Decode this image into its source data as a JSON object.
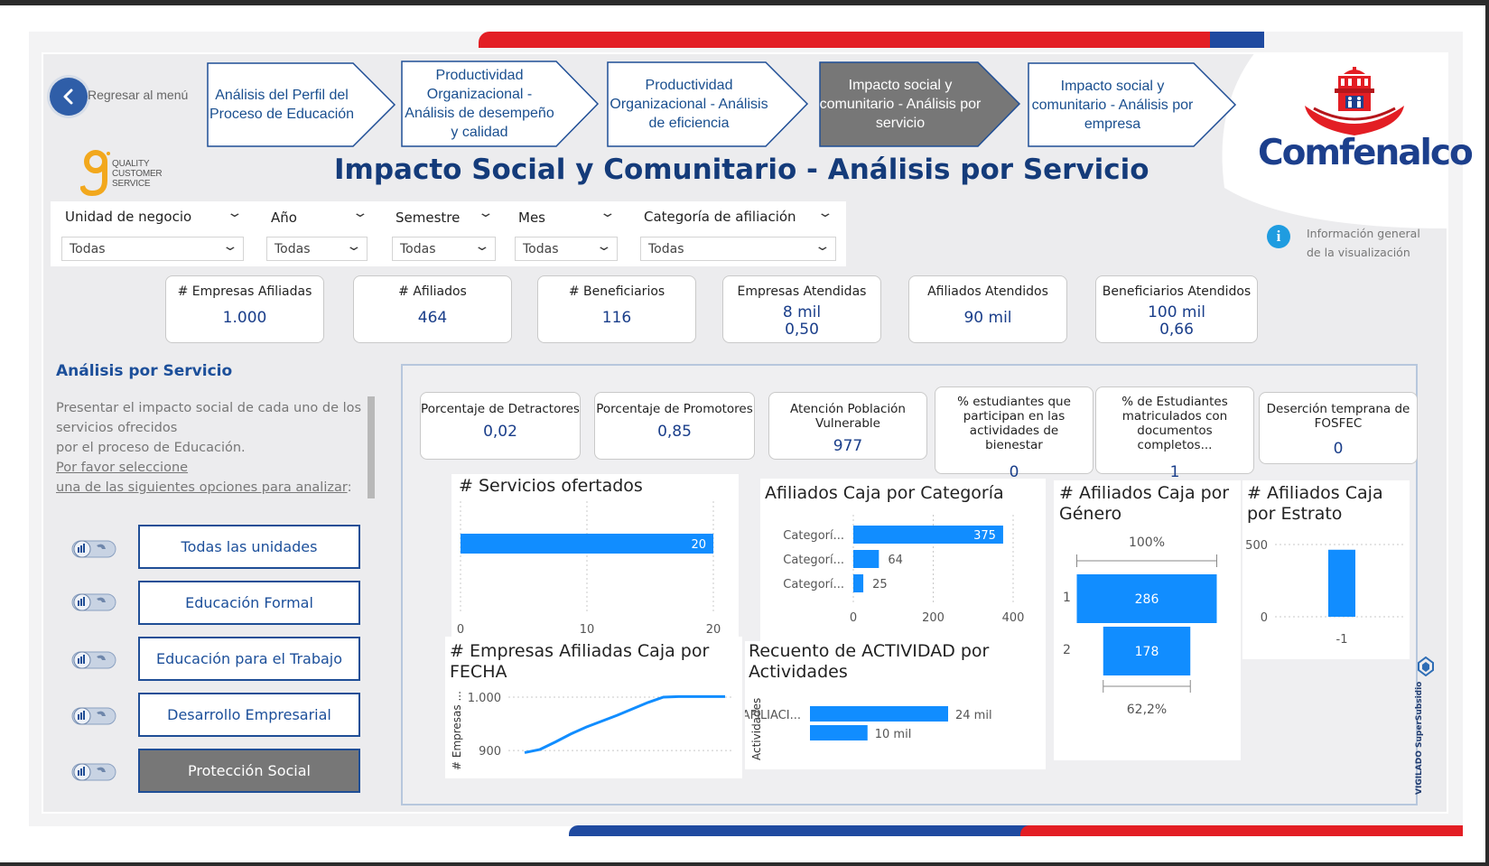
{
  "header": {
    "back_label": "Regresar al menú",
    "title": "Impacto Social y Comunitario - Análisis por Servicio",
    "qcs_lines": [
      "QUALITY",
      "CUSTOMER",
      "SERVICE"
    ],
    "logo_text": "Comfenalco",
    "nav": [
      {
        "label": "Análisis del Perfil del Proceso de Educación",
        "active": false
      },
      {
        "label": "Productividad Organizacional - Análisis de desempeño y calidad",
        "active": false
      },
      {
        "label": "Productividad Organizacional - Análisis de eficiencia",
        "active": false
      },
      {
        "label": "Impacto social y comunitario - Análisis por servicio",
        "active": true
      },
      {
        "label": "Impacto social y comunitario - Análisis por empresa",
        "active": false
      }
    ]
  },
  "filters": [
    {
      "label": "Unidad de negocio",
      "value": "Todas"
    },
    {
      "label": "Año",
      "value": "Todas"
    },
    {
      "label": "Semestre",
      "value": "Todas"
    },
    {
      "label": "Mes",
      "value": "Todas"
    },
    {
      "label": "Categoría de afiliación",
      "value": "Todas"
    }
  ],
  "info": {
    "line1": "Información general",
    "line2": "de la visualización"
  },
  "kpis_top": [
    {
      "title": "# Empresas Afiliadas",
      "value": "1.000",
      "value2": ""
    },
    {
      "title": "# Afiliados",
      "value": "464",
      "value2": ""
    },
    {
      "title": "# Beneficiarios",
      "value": "116",
      "value2": ""
    },
    {
      "title": "Empresas Atendidas",
      "value": "8 mil",
      "value2": "0,50"
    },
    {
      "title": "Afiliados Atendidos",
      "value": "90 mil",
      "value2": ""
    },
    {
      "title": "Beneficiarios Atendidos",
      "value": "100 mil",
      "value2": "0,66"
    }
  ],
  "sidebar": {
    "title": "Análisis por Servicio",
    "desc_line1": "Presentar el impacto social de cada uno de los servicios ofrecidos",
    "desc_line2": "por el proceso de Educación.",
    "desc_line3": "Por favor seleccione",
    "desc_line4": "una de las siguientes opciones para analizar",
    "desc_colon": ":",
    "buttons": [
      {
        "label": "Todas las unidades",
        "active": false
      },
      {
        "label": "Educación Formal",
        "active": false
      },
      {
        "label": "Educación para el Trabajo",
        "active": false
      },
      {
        "label": "Desarrollo Empresarial",
        "active": false
      },
      {
        "label": "Protección Social",
        "active": true
      }
    ]
  },
  "kpis_service": [
    {
      "title": "Porcentaje de Detractores",
      "value": "0,02"
    },
    {
      "title": "Porcentaje de Promotores",
      "value": "0,85"
    },
    {
      "title": "Atención Población Vulnerable",
      "value": "977"
    },
    {
      "title": "% estudiantes que participan en las actividades de bienestar",
      "value": "0"
    },
    {
      "title": "% de Estudiantes matriculados con documentos completos...",
      "value": "1"
    },
    {
      "title": "Deserción temprana de FOSFEC",
      "value": "0"
    }
  ],
  "accent": "#118dff",
  "vigilado": "VIGILADO SuperSubsidio",
  "chart_data": [
    {
      "type": "bar",
      "title": "# Servicios ofertados",
      "categories": [
        ""
      ],
      "values": [
        20
      ],
      "xlim": [
        0,
        20
      ],
      "ticks": [
        "0",
        "10",
        "20"
      ],
      "data_labels": [
        "20"
      ]
    },
    {
      "type": "bar",
      "title": "Afiliados Caja por Categoría",
      "categories": [
        "Categorí...",
        "Categorí...",
        "Categorí..."
      ],
      "values": [
        375,
        64,
        25
      ],
      "xlim": [
        0,
        400
      ],
      "ticks": [
        "0",
        "200",
        "400"
      ]
    },
    {
      "type": "bar",
      "title": "# Afiliados Caja por Género",
      "categories": [
        "1",
        "2"
      ],
      "values": [
        286,
        178
      ],
      "top_label": "100%",
      "bottom_label": "62,2%"
    },
    {
      "type": "bar",
      "title": "# Afiliados Caja por Estrato",
      "categories": [
        "-1"
      ],
      "values": [
        464
      ],
      "ylim": [
        0,
        500
      ],
      "ticks": [
        "0",
        "500"
      ]
    },
    {
      "type": "line",
      "title": "# Empresas Afiliadas Caja por FECHA",
      "ylabel": "# Empresas ...",
      "values": [
        896,
        902,
        916,
        931,
        944,
        955,
        966,
        978,
        990,
        1000,
        1001,
        1001,
        1001,
        1001
      ],
      "ylim": [
        890,
        1000
      ],
      "ticks": [
        "900",
        "1.000"
      ]
    },
    {
      "type": "bar",
      "title": "Recuento de ACTIVIDAD por Actividades",
      "ylabel": "Actividades",
      "categories": [
        "AFILIACI...",
        ""
      ],
      "values": [
        24,
        10
      ],
      "data_labels": [
        "24 mil",
        "10 mil"
      ]
    }
  ]
}
